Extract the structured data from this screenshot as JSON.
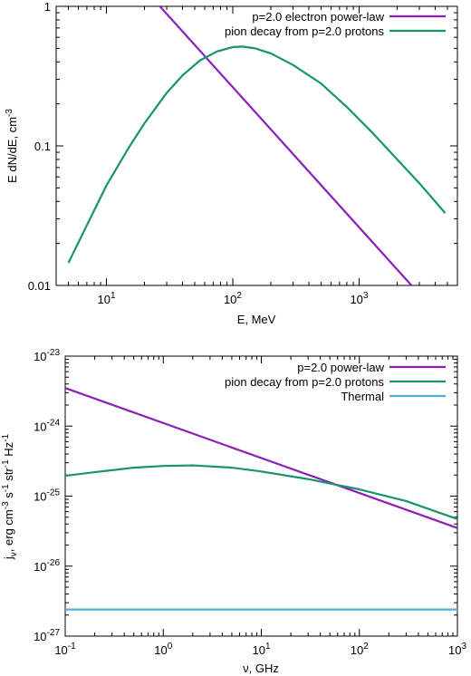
{
  "colors": {
    "purple": "#8B1FB8",
    "green": "#17936E",
    "cyan": "#4FB3D9"
  },
  "chart_data": [
    {
      "type": "line",
      "xlabel": "E, MeV",
      "ylabel": "E dN/dE, cm",
      "ylabel_sup": "-3",
      "xscale": "log",
      "yscale": "log",
      "xlim": [
        4,
        6000
      ],
      "ylim": [
        0.01,
        1
      ],
      "xticks": [
        {
          "v": 10,
          "base": "10",
          "exp": "1"
        },
        {
          "v": 100,
          "base": "10",
          "exp": "2"
        },
        {
          "v": 1000,
          "base": "10",
          "exp": "3"
        }
      ],
      "yticks": [
        {
          "v": 0.01,
          "label": "0.01"
        },
        {
          "v": 0.1,
          "label": "0.1"
        },
        {
          "v": 1,
          "label": "1"
        }
      ],
      "legend_position": "top-right",
      "grid": false,
      "series": [
        {
          "name": "p=2.0 electron power-law",
          "color": "#8B1FB8",
          "x": [
            26.5,
            2600
          ],
          "y": [
            1.0,
            0.01
          ]
        },
        {
          "name": "pion decay from p=2.0 protons",
          "color": "#17936E",
          "x": [
            5,
            7,
            10,
            15,
            20,
            30,
            40,
            55,
            75,
            100,
            120,
            150,
            200,
            300,
            500,
            800,
            1300,
            2000,
            3000,
            4800
          ],
          "y": [
            0.0145,
            0.027,
            0.052,
            0.097,
            0.145,
            0.24,
            0.32,
            0.41,
            0.475,
            0.51,
            0.515,
            0.5,
            0.46,
            0.38,
            0.28,
            0.19,
            0.122,
            0.08,
            0.054,
            0.033
          ]
        }
      ]
    },
    {
      "type": "line",
      "xlabel": "ν, GHz",
      "ylabel_parts": [
        "j",
        "ν",
        ", erg cm",
        "-3",
        " s",
        "-1",
        " str",
        "-1",
        " Hz",
        "-1"
      ],
      "xscale": "log",
      "yscale": "log",
      "xlim": [
        0.1,
        1000
      ],
      "ylim": [
        1e-27,
        1e-23
      ],
      "xticks": [
        {
          "v": 0.1,
          "base": "10",
          "exp": "-1"
        },
        {
          "v": 1,
          "base": "10",
          "exp": "0"
        },
        {
          "v": 10,
          "base": "10",
          "exp": "1"
        },
        {
          "v": 100,
          "base": "10",
          "exp": "2"
        },
        {
          "v": 1000,
          "base": "10",
          "exp": "3"
        }
      ],
      "yticks": [
        {
          "v": 1e-27,
          "base": "10",
          "exp": "-27"
        },
        {
          "v": 1e-26,
          "base": "10",
          "exp": "-26"
        },
        {
          "v": 1e-25,
          "base": "10",
          "exp": "-25"
        },
        {
          "v": 1e-24,
          "base": "10",
          "exp": "-24"
        },
        {
          "v": 1e-23,
          "base": "10",
          "exp": "-23"
        }
      ],
      "legend_position": "top-right",
      "grid": false,
      "series": [
        {
          "name": "p=2.0 power-law",
          "color": "#8B1FB8",
          "x": [
            0.1,
            1000
          ],
          "y": [
            3.5e-24,
            3.5e-26
          ]
        },
        {
          "name": "pion decay from p=2.0 protons",
          "color": "#17936E",
          "x": [
            0.1,
            0.2,
            0.5,
            1,
            2,
            5,
            10,
            30,
            100,
            300,
            1000
          ],
          "y": [
            1.95e-25,
            2.2e-25,
            2.55e-25,
            2.7e-25,
            2.75e-25,
            2.55e-25,
            2.25e-25,
            1.75e-25,
            1.25e-25,
            8.5e-26,
            4.7e-26
          ]
        },
        {
          "name": "Thermal",
          "color": "#4FB3D9",
          "x": [
            0.1,
            1000
          ],
          "y": [
            2.4e-27,
            2.4e-27
          ]
        }
      ]
    }
  ]
}
